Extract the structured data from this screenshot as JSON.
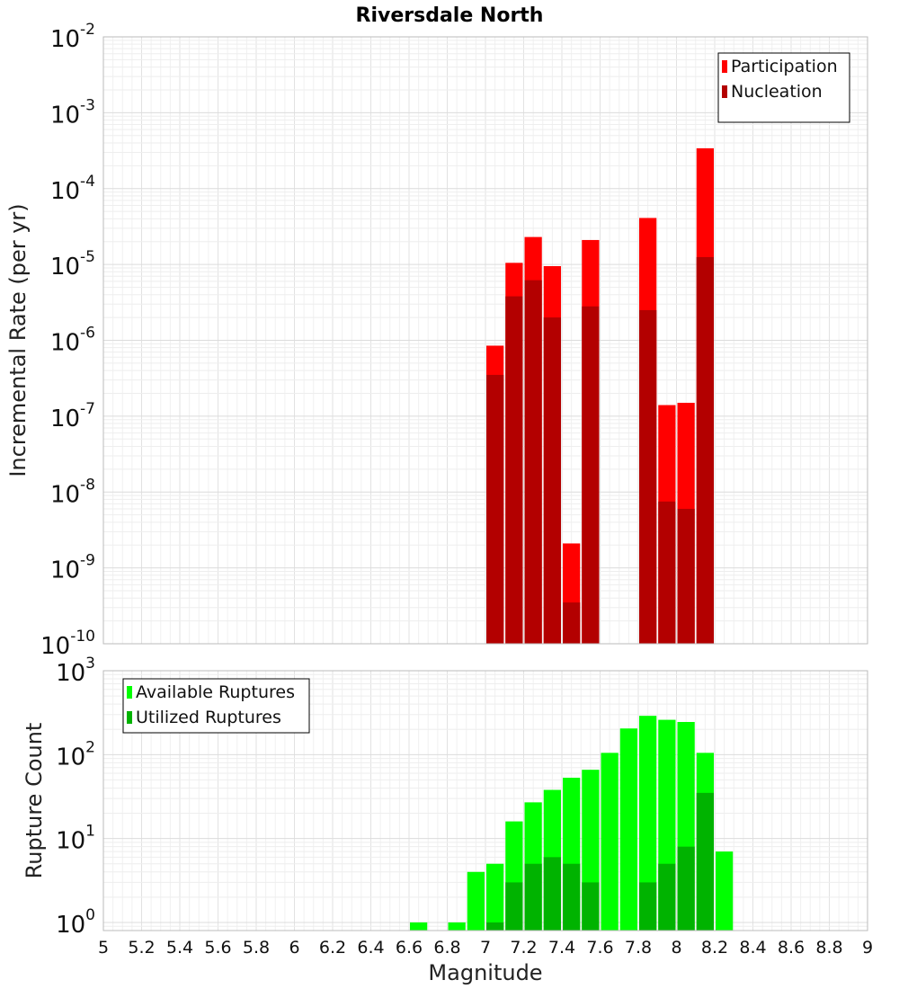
{
  "chart_data": {
    "title": "Riversdale North",
    "xlabel": "Magnitude",
    "xlim": [
      5,
      9
    ],
    "xticks": [
      "5",
      "5.2",
      "5.4",
      "5.6",
      "5.8",
      "6",
      "6.2",
      "6.4",
      "6.6",
      "6.8",
      "7",
      "7.2",
      "7.4",
      "7.6",
      "7.8",
      "8",
      "8.2",
      "8.4",
      "8.6",
      "8.8",
      "9"
    ],
    "bin_width": 0.1,
    "grid": true,
    "panels": [
      {
        "type": "bar",
        "ylabel": "Incremental Rate (per yr)",
        "yscale": "log",
        "ylim": [
          1e-10,
          0.01
        ],
        "yticks": [
          {
            "base": "10",
            "exp": "-2"
          },
          {
            "base": "10",
            "exp": "-3"
          },
          {
            "base": "10",
            "exp": "-4"
          },
          {
            "base": "10",
            "exp": "-5"
          },
          {
            "base": "10",
            "exp": "-6"
          },
          {
            "base": "10",
            "exp": "-7"
          },
          {
            "base": "10",
            "exp": "-8"
          },
          {
            "base": "10",
            "exp": "-9"
          },
          {
            "base": "10",
            "exp": "-10"
          }
        ],
        "legend_position": "top-right",
        "series": [
          {
            "name": "Participation",
            "color": "#ff0000",
            "x": [
              7.05,
              7.15,
              7.25,
              7.35,
              7.45,
              7.55,
              7.85,
              7.95,
              8.05,
              8.15
            ],
            "values": [
              8.5e-07,
              1.05e-05,
              2.3e-05,
              9.5e-06,
              2.1e-09,
              2.1e-05,
              4.1e-05,
              1.4e-07,
              1.5e-07,
              0.00034
            ]
          },
          {
            "name": "Nucleation",
            "color": "#b30000",
            "x": [
              7.05,
              7.15,
              7.25,
              7.35,
              7.45,
              7.55,
              7.85,
              7.95,
              8.05,
              8.15
            ],
            "values": [
              3.5e-07,
              3.8e-06,
              6.2e-06,
              2e-06,
              3.5e-10,
              2.8e-06,
              2.5e-06,
              7.5e-09,
              6e-09,
              1.25e-05
            ]
          }
        ]
      },
      {
        "type": "bar",
        "ylabel": "Rupture Count",
        "yscale": "log",
        "ylim": [
          0.8,
          1000
        ],
        "yticks": [
          {
            "base": "10",
            "exp": "3"
          },
          {
            "base": "10",
            "exp": "2"
          },
          {
            "base": "10",
            "exp": "1"
          },
          {
            "base": "10",
            "exp": "0"
          }
        ],
        "legend_position": "top-left",
        "series": [
          {
            "name": "Available Ruptures",
            "color": "#00ff00",
            "x": [
              6.65,
              6.85,
              6.95,
              7.05,
              7.15,
              7.25,
              7.35,
              7.45,
              7.55,
              7.65,
              7.75,
              7.85,
              7.95,
              8.05,
              8.15,
              8.25
            ],
            "values": [
              1,
              1,
              4,
              5,
              16,
              27,
              38,
              53,
              66,
              105,
              205,
              290,
              260,
              245,
              105,
              7
            ]
          },
          {
            "name": "Utilized Ruptures",
            "color": "#00b300",
            "x": [
              7.05,
              7.15,
              7.25,
              7.35,
              7.45,
              7.55,
              7.85,
              7.95,
              8.05,
              8.15
            ],
            "values": [
              1,
              3,
              5,
              6,
              5,
              3,
              3,
              5,
              8,
              35
            ]
          }
        ]
      }
    ]
  }
}
